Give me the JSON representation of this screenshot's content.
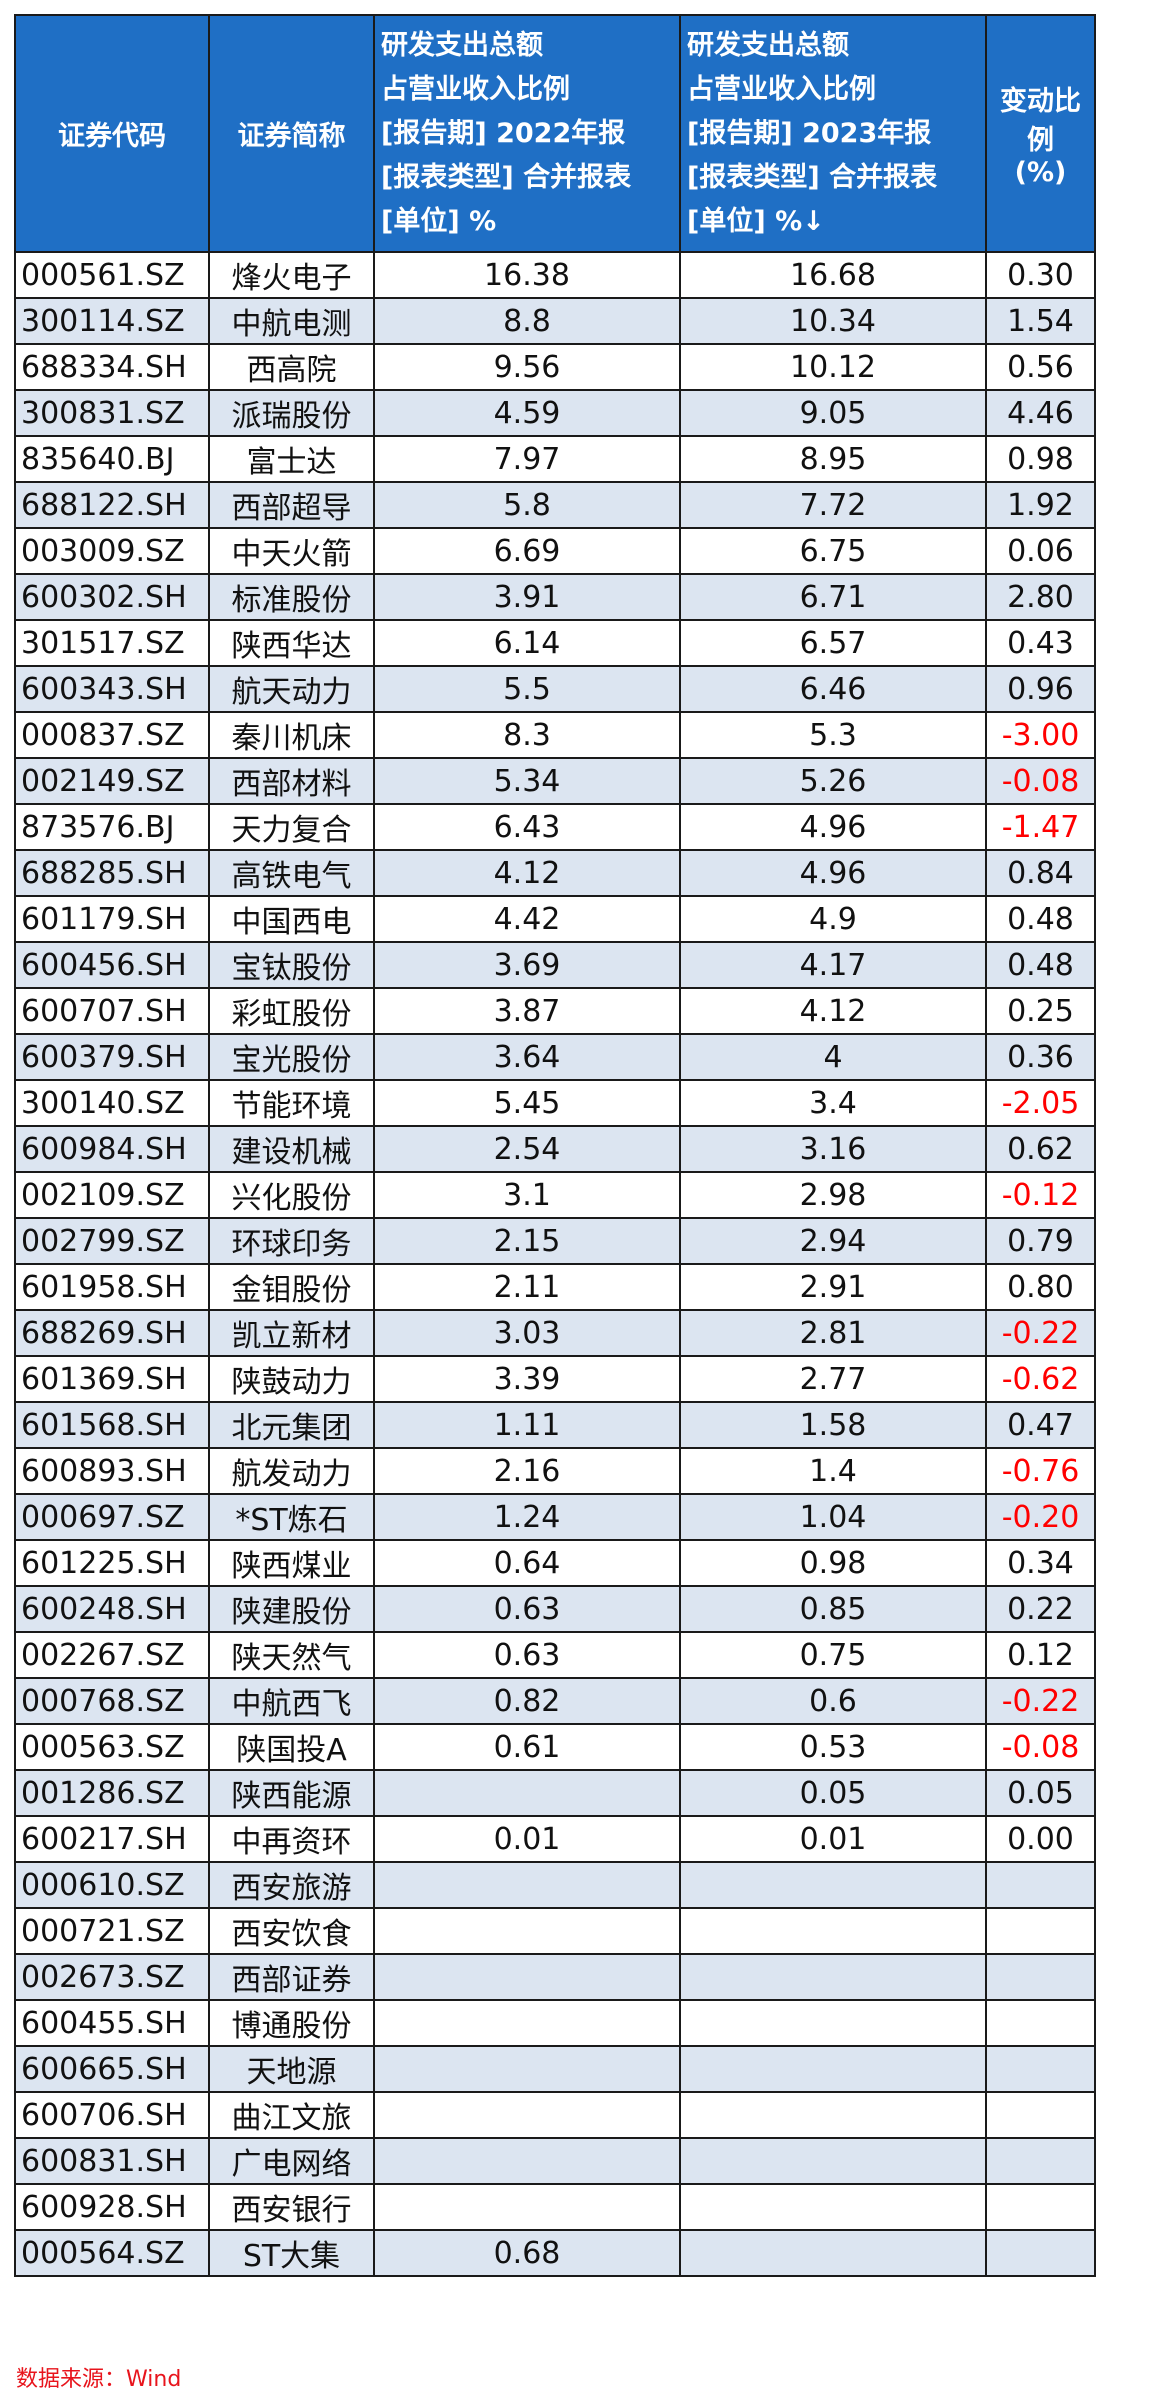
{
  "header": {
    "code": "证券代码",
    "name": "证券简称",
    "col2022": [
      "研发支出总额",
      "占营业收入比例",
      "[报告期] 2022年报",
      "[报表类型] 合并报表",
      "[单位] %"
    ],
    "col2023": [
      "研发支出总额",
      "占营业收入比例",
      "[报告期] 2023年报",
      "[报表类型] 合并报表",
      "[单位] %↓"
    ],
    "change": [
      "变动比例",
      "(%)"
    ]
  },
  "rows": [
    [
      "000561.SZ",
      "烽火电子",
      "16.38",
      "16.68",
      "0.30"
    ],
    [
      "300114.SZ",
      "中航电测",
      "8.8",
      "10.34",
      "1.54"
    ],
    [
      "688334.SH",
      "西高院",
      "9.56",
      "10.12",
      "0.56"
    ],
    [
      "300831.SZ",
      "派瑞股份",
      "4.59",
      "9.05",
      "4.46"
    ],
    [
      "835640.BJ",
      "富士达",
      "7.97",
      "8.95",
      "0.98"
    ],
    [
      "688122.SH",
      "西部超导",
      "5.8",
      "7.72",
      "1.92"
    ],
    [
      "003009.SZ",
      "中天火箭",
      "6.69",
      "6.75",
      "0.06"
    ],
    [
      "600302.SH",
      "标准股份",
      "3.91",
      "6.71",
      "2.80"
    ],
    [
      "301517.SZ",
      "陕西华达",
      "6.14",
      "6.57",
      "0.43"
    ],
    [
      "600343.SH",
      "航天动力",
      "5.5",
      "6.46",
      "0.96"
    ],
    [
      "000837.SZ",
      "秦川机床",
      "8.3",
      "5.3",
      "-3.00"
    ],
    [
      "002149.SZ",
      "西部材料",
      "5.34",
      "5.26",
      "-0.08"
    ],
    [
      "873576.BJ",
      "天力复合",
      "6.43",
      "4.96",
      "-1.47"
    ],
    [
      "688285.SH",
      "高铁电气",
      "4.12",
      "4.96",
      "0.84"
    ],
    [
      "601179.SH",
      "中国西电",
      "4.42",
      "4.9",
      "0.48"
    ],
    [
      "600456.SH",
      "宝钛股份",
      "3.69",
      "4.17",
      "0.48"
    ],
    [
      "600707.SH",
      "彩虹股份",
      "3.87",
      "4.12",
      "0.25"
    ],
    [
      "600379.SH",
      "宝光股份",
      "3.64",
      "4",
      "0.36"
    ],
    [
      "300140.SZ",
      "节能环境",
      "5.45",
      "3.4",
      "-2.05"
    ],
    [
      "600984.SH",
      "建设机械",
      "2.54",
      "3.16",
      "0.62"
    ],
    [
      "002109.SZ",
      "兴化股份",
      "3.1",
      "2.98",
      "-0.12"
    ],
    [
      "002799.SZ",
      "环球印务",
      "2.15",
      "2.94",
      "0.79"
    ],
    [
      "601958.SH",
      "金钼股份",
      "2.11",
      "2.91",
      "0.80"
    ],
    [
      "688269.SH",
      "凯立新材",
      "3.03",
      "2.81",
      "-0.22"
    ],
    [
      "601369.SH",
      "陕鼓动力",
      "3.39",
      "2.77",
      "-0.62"
    ],
    [
      "601568.SH",
      "北元集团",
      "1.11",
      "1.58",
      "0.47"
    ],
    [
      "600893.SH",
      "航发动力",
      "2.16",
      "1.4",
      "-0.76"
    ],
    [
      "000697.SZ",
      "*ST炼石",
      "1.24",
      "1.04",
      "-0.20"
    ],
    [
      "601225.SH",
      "陕西煤业",
      "0.64",
      "0.98",
      "0.34"
    ],
    [
      "600248.SH",
      "陕建股份",
      "0.63",
      "0.85",
      "0.22"
    ],
    [
      "002267.SZ",
      "陕天然气",
      "0.63",
      "0.75",
      "0.12"
    ],
    [
      "000768.SZ",
      "中航西飞",
      "0.82",
      "0.6",
      "-0.22"
    ],
    [
      "000563.SZ",
      "陕国投A",
      "0.61",
      "0.53",
      "-0.08"
    ],
    [
      "001286.SZ",
      "陕西能源",
      "",
      "0.05",
      "0.05"
    ],
    [
      "600217.SH",
      "中再资环",
      "0.01",
      "0.01",
      "0.00"
    ],
    [
      "000610.SZ",
      "西安旅游",
      "",
      "",
      ""
    ],
    [
      "000721.SZ",
      "西安饮食",
      "",
      "",
      ""
    ],
    [
      "002673.SZ",
      "西部证券",
      "",
      "",
      ""
    ],
    [
      "600455.SH",
      "博通股份",
      "",
      "",
      ""
    ],
    [
      "600665.SH",
      "天地源",
      "",
      "",
      ""
    ],
    [
      "600706.SH",
      "曲江文旅",
      "",
      "",
      ""
    ],
    [
      "600831.SH",
      "广电网络",
      "",
      "",
      ""
    ],
    [
      "600928.SH",
      "西安银行",
      "",
      "",
      ""
    ],
    [
      "000564.SZ",
      "ST大集",
      "0.68",
      "",
      ""
    ]
  ],
  "colors": {
    "header_bg": "#1f6fc5",
    "stripe": "#dce5f1",
    "negative": "#ff0000",
    "source": "#e8141c"
  },
  "source": "数据来源：Wind"
}
